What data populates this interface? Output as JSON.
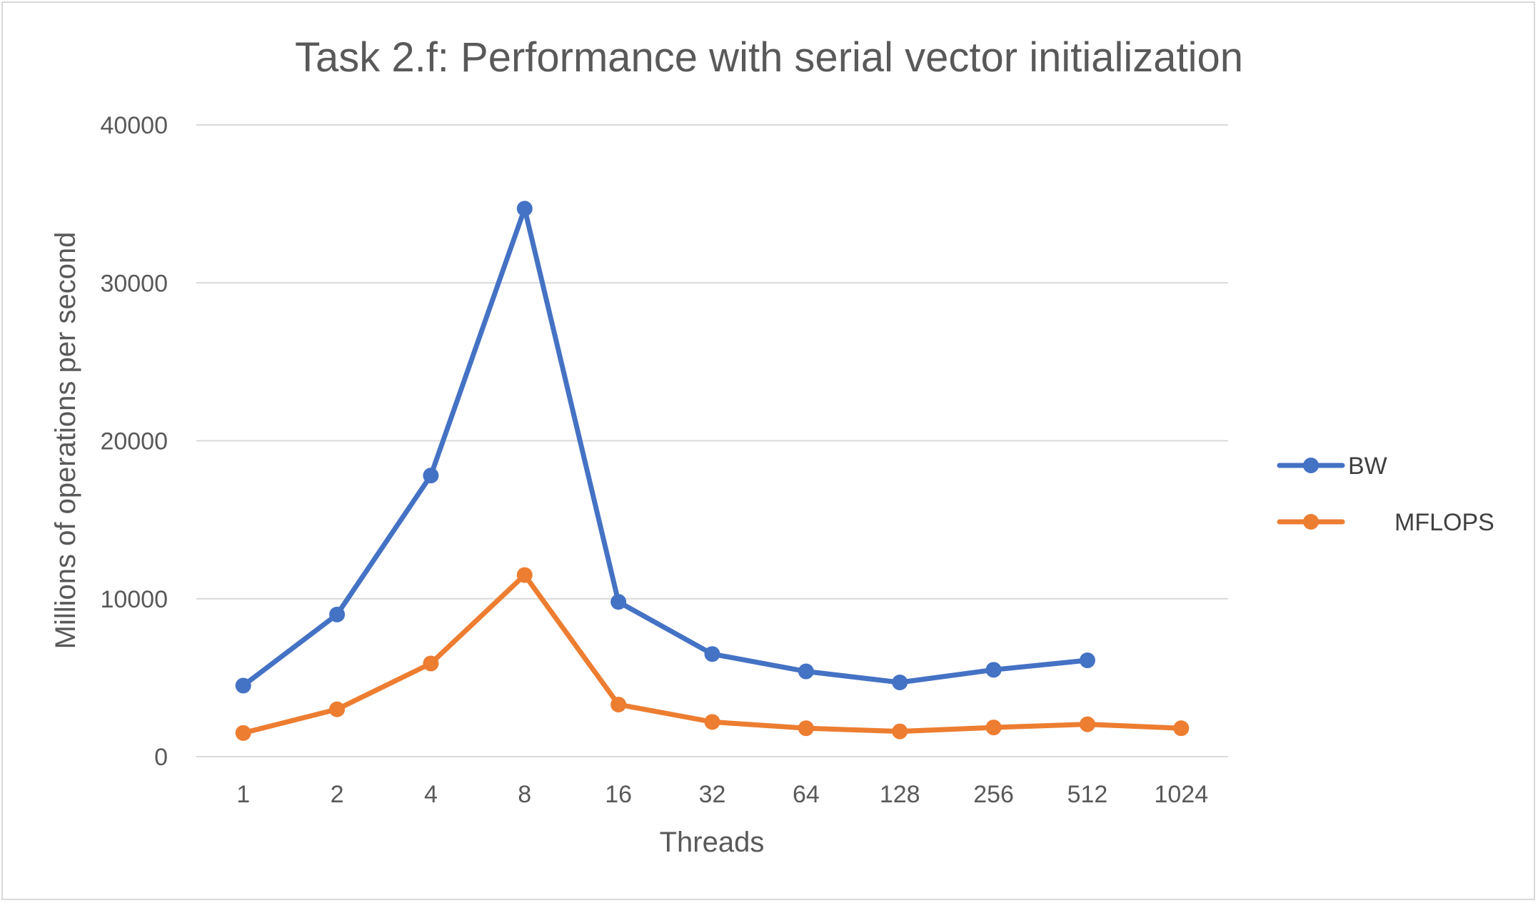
{
  "chart_data": {
    "type": "line",
    "title": "Task 2.f: Performance with serial vector initialization",
    "xlabel": "Threads",
    "ylabel": "Millions of operations per second",
    "categories": [
      "1",
      "2",
      "4",
      "8",
      "16",
      "32",
      "64",
      "128",
      "256",
      "512",
      "1024"
    ],
    "ylim": [
      0,
      40000
    ],
    "yticks": [
      "0",
      "10000",
      "20000",
      "30000",
      "40000"
    ],
    "grid": true,
    "legend_position": "right",
    "series": [
      {
        "name": "BW",
        "color": "#4472c4",
        "values": [
          4500,
          9000,
          17800,
          34700,
          9800,
          6500,
          5400,
          4700,
          5500,
          6100,
          null
        ]
      },
      {
        "name": "MFLOPS",
        "color": "#ed7d31",
        "values": [
          1500,
          3000,
          5900,
          11500,
          3300,
          2200,
          1800,
          1600,
          1850,
          2050,
          1800
        ]
      }
    ]
  }
}
